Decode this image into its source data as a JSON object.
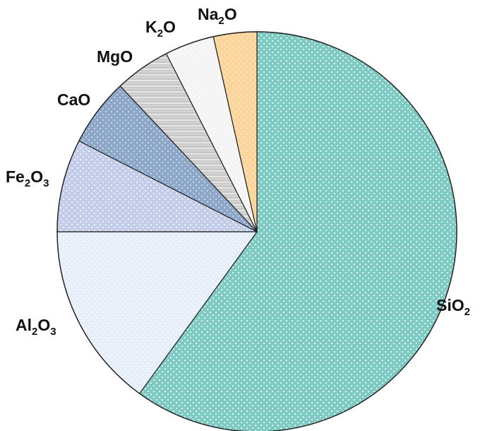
{
  "chart_data": {
    "type": "pie",
    "title": "",
    "start_angle_deg": 0,
    "direction": "clockwise",
    "legend": "none",
    "slices": [
      {
        "key": "sio2",
        "label": "SiO2",
        "label_parts": [
          [
            "Si",
            "n"
          ],
          [
            "O",
            "n"
          ],
          [
            "2",
            "s"
          ]
        ],
        "value": 60.0,
        "color": "#7fcbc4",
        "pattern": "dots",
        "pattern_color": "#ffffff"
      },
      {
        "key": "al2o3",
        "label": "Al2O3",
        "label_parts": [
          [
            "Al",
            "n"
          ],
          [
            "2",
            "s"
          ],
          [
            "O",
            "n"
          ],
          [
            "3",
            "s"
          ]
        ],
        "value": 15.0,
        "color": "#e6eef9",
        "pattern": "dots",
        "pattern_color": "#ffffff"
      },
      {
        "key": "fe2o3",
        "label": "Fe2O3",
        "label_parts": [
          [
            "Fe",
            "n"
          ],
          [
            "2",
            "s"
          ],
          [
            "O",
            "n"
          ],
          [
            "3",
            "s"
          ]
        ],
        "value": 7.5,
        "color": "#c3cce8",
        "pattern": "dots",
        "pattern_color": "#ffffff"
      },
      {
        "key": "cao",
        "label": "CaO",
        "label_parts": [
          [
            "CaO",
            "n"
          ]
        ],
        "value": 5.5,
        "color": "#8ea7c9",
        "pattern": "dots",
        "pattern_color": "#d9e2ef"
      },
      {
        "key": "mgo",
        "label": "MgO",
        "label_parts": [
          [
            "MgO",
            "n"
          ]
        ],
        "value": 4.5,
        "color": "#c8c8c8",
        "pattern": "lines",
        "pattern_color": "#eeeeee"
      },
      {
        "key": "k2o",
        "label": "K2O",
        "label_parts": [
          [
            "K",
            "n"
          ],
          [
            "2",
            "s"
          ],
          [
            "O",
            "n"
          ]
        ],
        "value": 4.0,
        "color": "#f4f4f4",
        "pattern": "dots",
        "pattern_color": "#ffffff"
      },
      {
        "key": "na2o",
        "label": "Na2O",
        "label_parts": [
          [
            "Na",
            "n"
          ],
          [
            "2",
            "s"
          ],
          [
            "O",
            "n"
          ]
        ],
        "value": 3.5,
        "color": "#fdd49a",
        "pattern": "dots",
        "pattern_color": "#fff3e0"
      }
    ]
  }
}
